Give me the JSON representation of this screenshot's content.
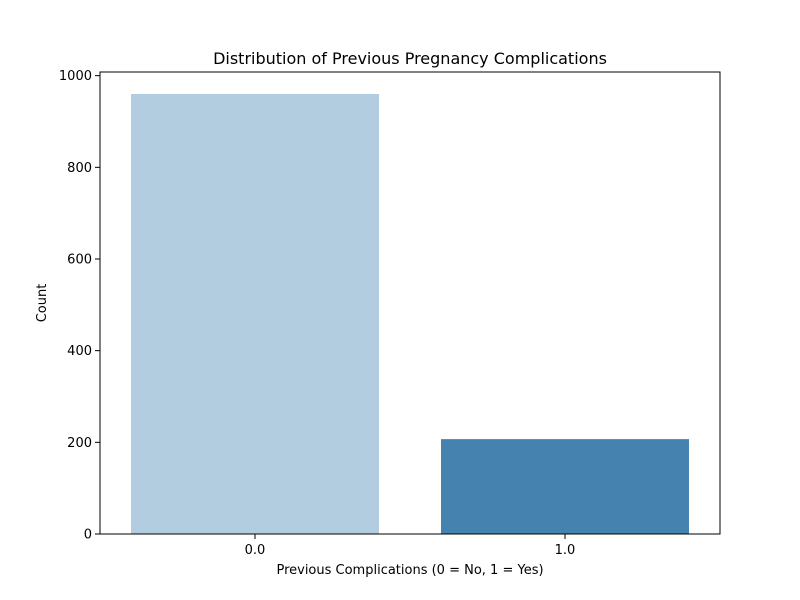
{
  "chart_data": {
    "type": "bar",
    "title": "Distribution of Previous Pregnancy Complications",
    "xlabel": "Previous Complications (0 = No, 1 = Yes)",
    "ylabel": "Count",
    "categories": [
      "0.0",
      "1.0"
    ],
    "values": [
      960,
      207
    ],
    "colors": [
      "#b3cde0",
      "#4682b0"
    ],
    "ylim": [
      0,
      1008
    ],
    "yticks": [
      0,
      200,
      400,
      600,
      800,
      1000
    ],
    "ytick_labels": [
      "0",
      "200",
      "400",
      "600",
      "800",
      "1000"
    ],
    "grid": false,
    "legend": "none"
  }
}
